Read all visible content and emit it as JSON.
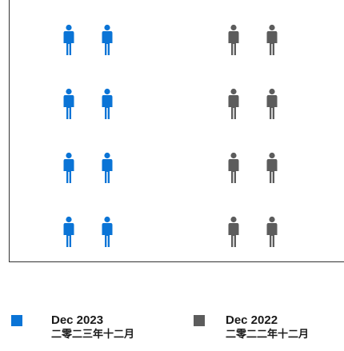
{
  "chart_data": {
    "type": "pictogram",
    "icon": "person-icon",
    "series": [
      {
        "name": "Dec 2023",
        "sublabel": "二零二三年十二月",
        "value": 8,
        "color": "#0a74d6"
      },
      {
        "name": "Dec 2022",
        "sublabel": "二零二二年十二月",
        "value": 8,
        "color": "#5c5c5c"
      }
    ],
    "legend_position": "bottom"
  }
}
